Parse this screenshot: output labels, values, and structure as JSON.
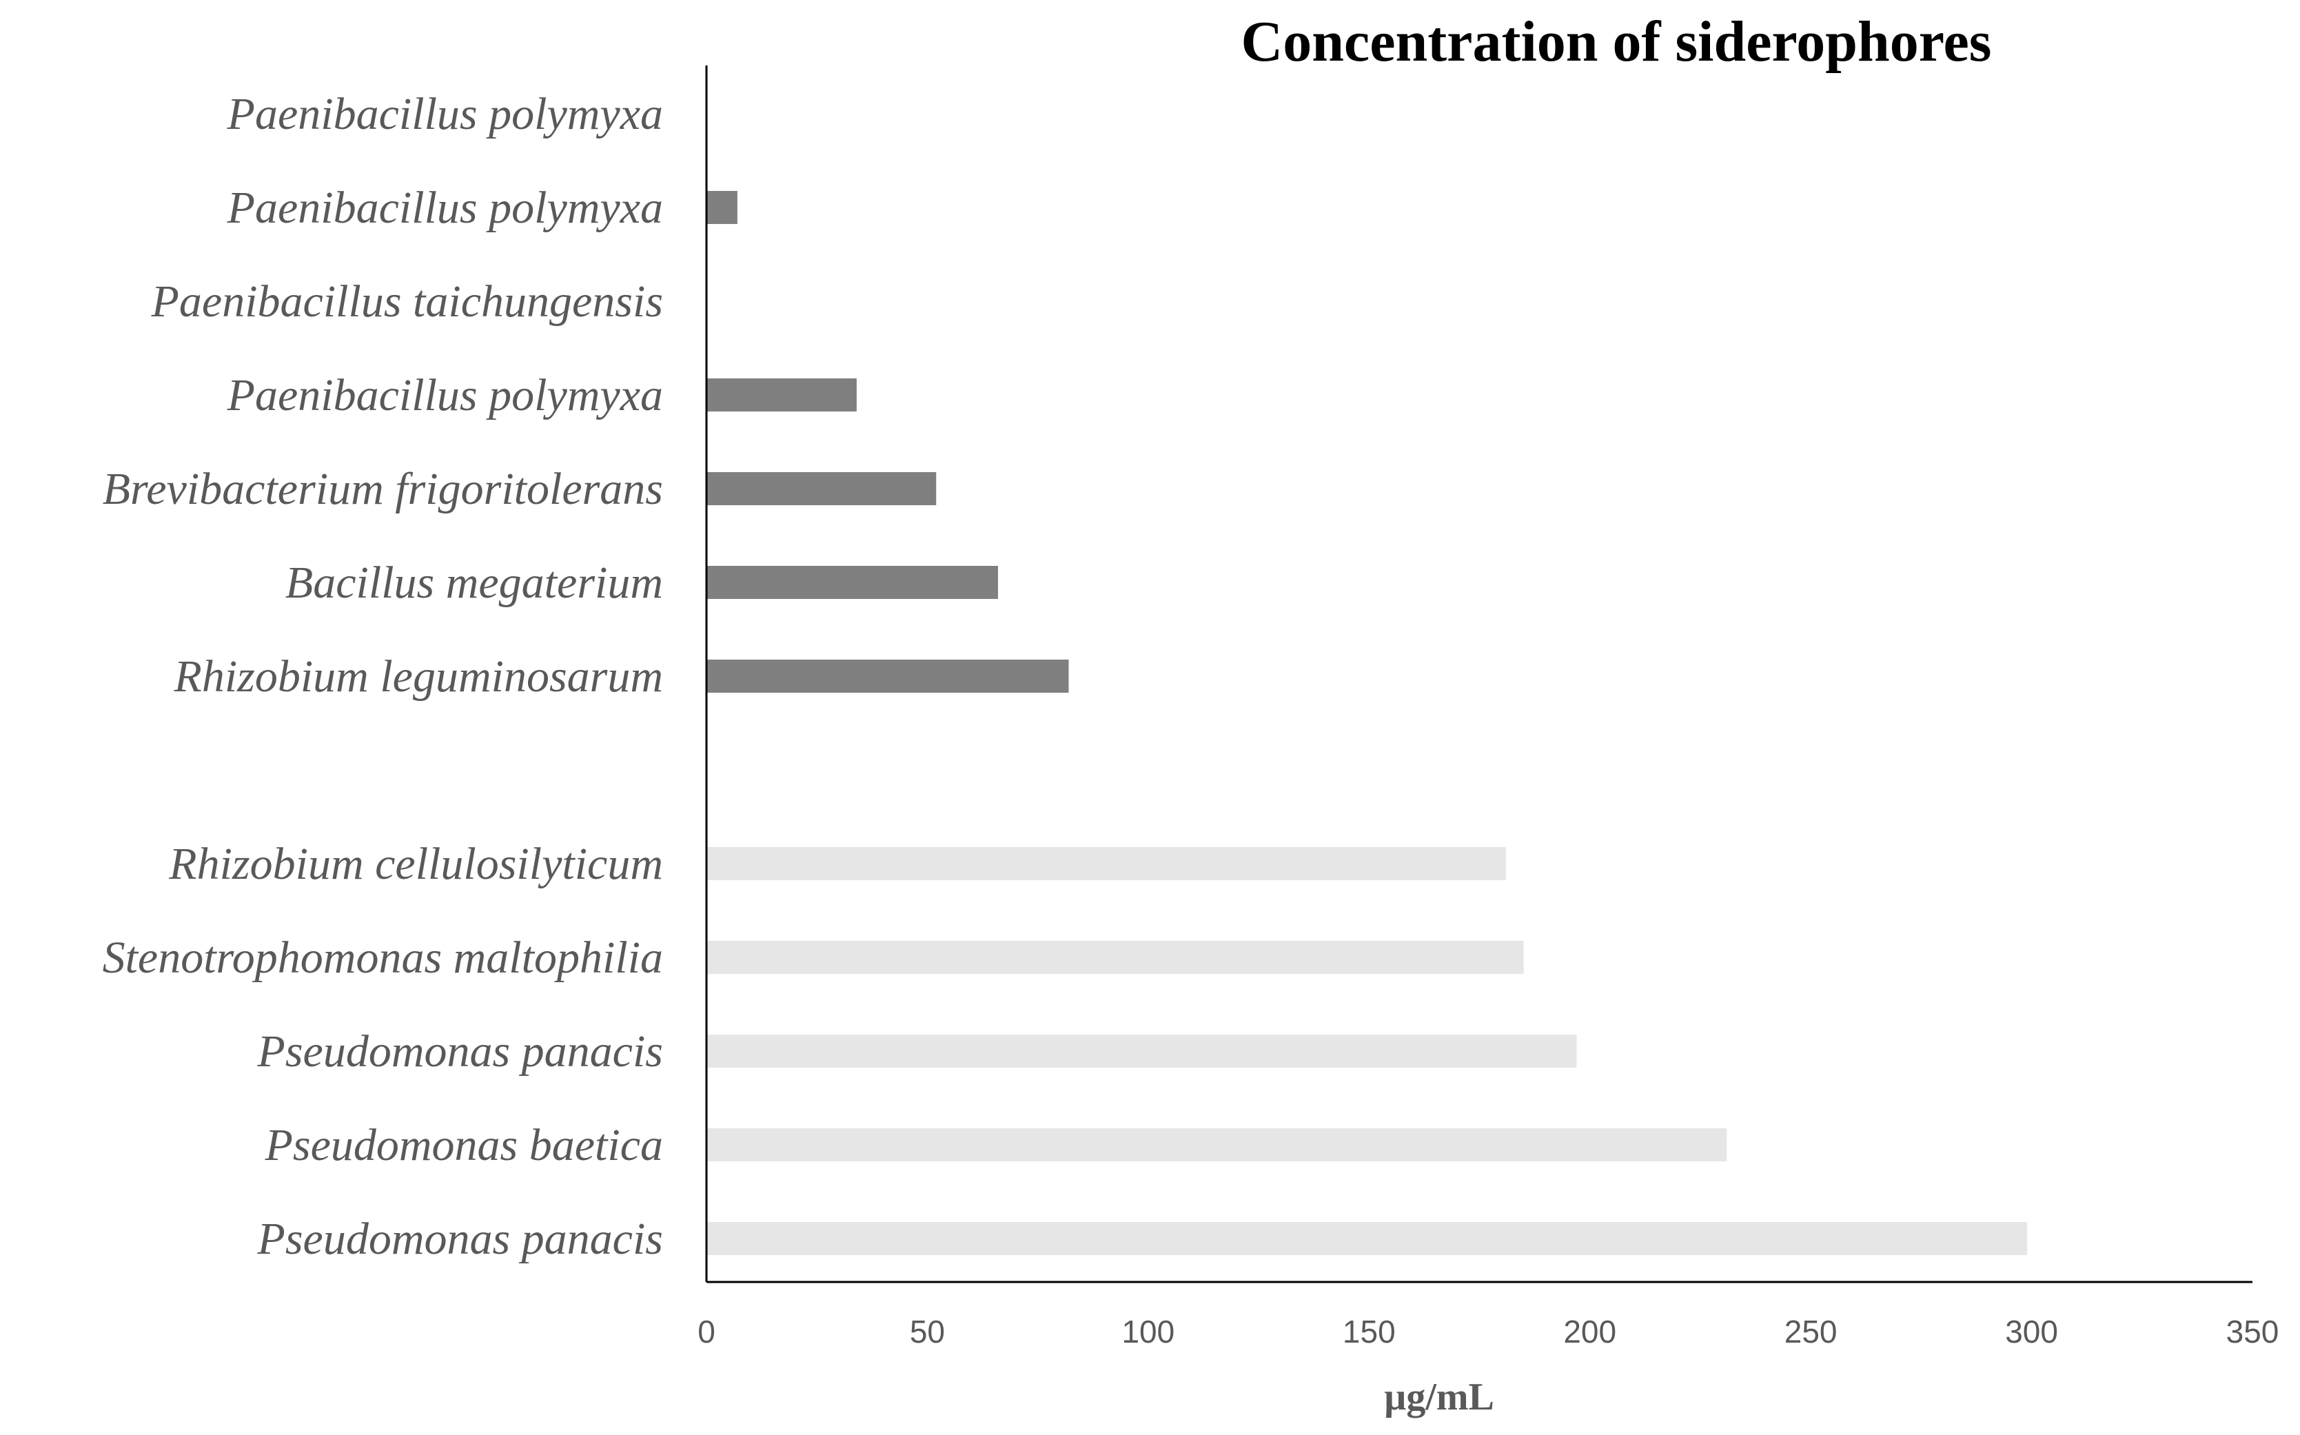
{
  "chart_data": {
    "type": "bar",
    "orientation": "horizontal",
    "title": "Concentration of siderophores",
    "xlabel": "µg/mL",
    "ylabel": "",
    "xlim": [
      0,
      350
    ],
    "xticks": [
      0,
      50,
      100,
      150,
      200,
      250,
      300,
      350
    ],
    "grid": false,
    "legend": "none",
    "colors": {
      "dark_group": "#7f7f7f",
      "light_group": "#e6e6e6",
      "axis": "#000000",
      "label": "#595959"
    },
    "categories": [
      "Paenibacillus polymyxa",
      "Paenibacillus polymyxa",
      "Paenibacillus taichungensis",
      "Paenibacillus polymyxa",
      "Brevibacterium frigoritolerans",
      "Bacillus megaterium",
      "Rhizobium leguminosarum",
      "",
      "Rhizobium cellulosilyticum",
      "Stenotrophomonas maltophilia",
      "Pseudomonas panacis",
      "Pseudomonas baetica",
      "Pseudomonas panacis"
    ],
    "values": [
      0,
      7,
      0,
      34,
      52,
      66,
      82,
      null,
      181,
      185,
      197,
      231,
      299
    ],
    "groups": [
      "dark",
      "dark",
      "dark",
      "dark",
      "dark",
      "dark",
      "dark",
      "none",
      "light",
      "light",
      "light",
      "light",
      "light"
    ]
  }
}
